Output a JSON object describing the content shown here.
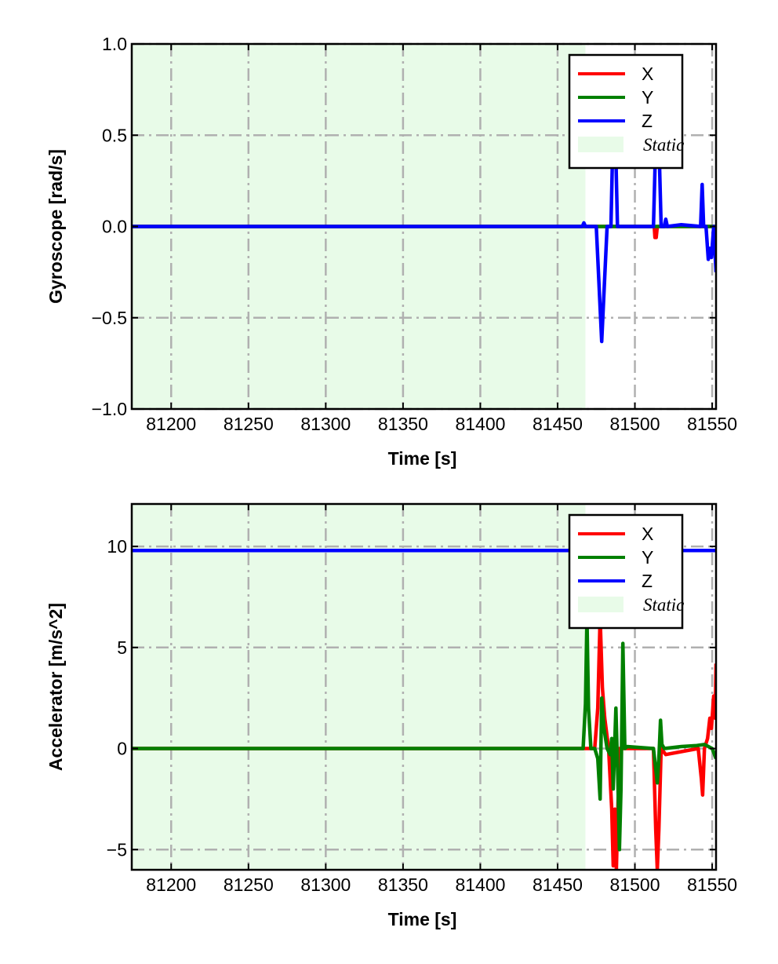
{
  "chart_data": [
    {
      "type": "line",
      "ylabel": "Gyroscope [rad/s]",
      "xlabel": "Time [s]",
      "xlim": [
        81174.5,
        81552.5
      ],
      "ylim": [
        -1.0,
        1.0
      ],
      "xticks": [
        81200,
        81250,
        81300,
        81350,
        81400,
        81450,
        81500,
        81550
      ],
      "yticks": [
        -1.0,
        -0.5,
        0.0,
        0.5,
        1.0
      ],
      "ytick_labels": [
        "−1.0",
        "−0.5",
        "0.0",
        "0.5",
        "1.0"
      ],
      "xtick_labels": [
        "81200",
        "81250",
        "81300",
        "81350",
        "81400",
        "81450",
        "81500",
        "81550"
      ],
      "grid": true,
      "legend_position": "top-right",
      "static_region": {
        "label": "Static",
        "x": [
          81174.5,
          81468
        ],
        "color": "#e8fbe8"
      },
      "series": [
        {
          "name": "X",
          "color": "#ff0000",
          "x": [
            81174.5,
            81512.5,
            81513,
            81513.8,
            81514.5,
            81552.5
          ],
          "y": [
            0,
            0,
            -0.06,
            -0.06,
            0,
            0
          ]
        },
        {
          "name": "Y",
          "color": "#008000",
          "x": [
            81174.5,
            81552.5
          ],
          "y": [
            0,
            0
          ]
        },
        {
          "name": "Z",
          "color": "#0000ff",
          "x": [
            81174.5,
            81466,
            81467,
            81468,
            81475,
            81478.5,
            81482,
            81484.5,
            81486.6,
            81488.7,
            81512,
            81514.5,
            81517,
            81519,
            81520,
            81521,
            81530,
            81542.5,
            81543.5,
            81544.5,
            81546,
            81547.5,
            81548.5,
            81549.5,
            81551,
            81552.5
          ],
          "y": [
            0,
            0,
            0.02,
            0,
            0,
            -0.63,
            0,
            0,
            0.8,
            0,
            0,
            0.8,
            0,
            0,
            0.04,
            0,
            0.01,
            0,
            0.23,
            0,
            0,
            -0.18,
            -0.12,
            -0.17,
            0,
            -0.25
          ]
        }
      ]
    },
    {
      "type": "line",
      "ylabel": "Accelerator [m/s^2]",
      "xlabel": "Time [s]",
      "xlim": [
        81174.5,
        81552.5
      ],
      "ylim": [
        -6,
        12.1
      ],
      "xticks": [
        81200,
        81250,
        81300,
        81350,
        81400,
        81450,
        81500,
        81550
      ],
      "yticks": [
        -5,
        0,
        5,
        10
      ],
      "ytick_labels": [
        "−5",
        "0",
        "5",
        "10"
      ],
      "xtick_labels": [
        "81200",
        "81250",
        "81300",
        "81350",
        "81400",
        "81450",
        "81500",
        "81550"
      ],
      "grid": true,
      "legend_position": "top-right",
      "static_region": {
        "label": "Static",
        "x": [
          81174.5,
          81468
        ],
        "color": "#e8fbe8"
      },
      "series": [
        {
          "name": "X",
          "color": "#ff0000",
          "x": [
            81174.5,
            81474,
            81476,
            81477.5,
            81479,
            81480.5,
            81483,
            81485,
            81486,
            81487,
            81488,
            81490,
            81500,
            81512,
            81513.5,
            81514.5,
            81515.5,
            81517,
            81520,
            81541,
            81543,
            81543.8,
            81545,
            81547,
            81548.5,
            81549.5,
            81551,
            81552,
            81552.5
          ],
          "y": [
            0,
            0,
            2,
            6.5,
            3,
            1.5,
            0,
            -3,
            -5.8,
            -3,
            -6,
            0,
            0,
            0,
            -4,
            -6,
            -4,
            0,
            -0.3,
            0,
            -1.5,
            -2.3,
            0,
            0.5,
            1.5,
            1.0,
            2.6,
            1.5,
            4.2
          ]
        },
        {
          "name": "Y",
          "color": "#008000",
          "x": [
            81174.5,
            81466.5,
            81468,
            81469,
            81470,
            81471.5,
            81474,
            81476,
            81477.5,
            81478.5,
            81480,
            81482,
            81484,
            81485,
            81486,
            81487.7,
            81489,
            81490,
            81491,
            81492.2,
            81493.5,
            81495,
            81512,
            81514.5,
            81515.5,
            81516.6,
            81517.5,
            81519,
            81530,
            81540,
            81545,
            81550,
            81552.5
          ],
          "y": [
            0,
            0,
            2.2,
            6.5,
            2.0,
            0,
            0,
            -0.5,
            -2.5,
            2.5,
            1.0,
            0,
            -0.3,
            0.5,
            -2.0,
            2.0,
            -1.5,
            -5.0,
            -2.0,
            5.2,
            0,
            0.1,
            0,
            -1.7,
            -0.5,
            1.4,
            0.2,
            0,
            0.1,
            0.15,
            0.2,
            0,
            -0.5
          ]
        },
        {
          "name": "Z",
          "color": "#0000ff",
          "x": [
            81174.5,
            81552.5
          ],
          "y": [
            9.8,
            9.8
          ]
        }
      ]
    }
  ]
}
